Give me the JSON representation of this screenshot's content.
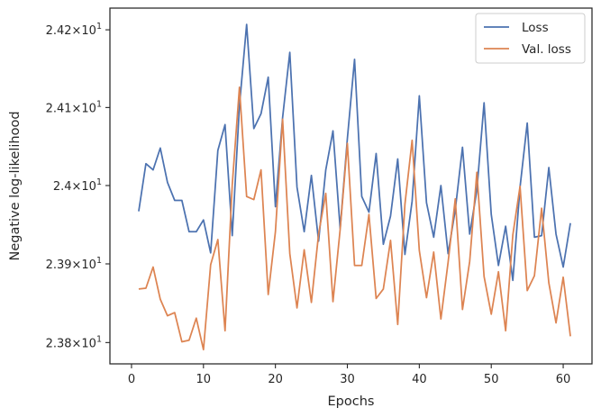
{
  "chart_data": {
    "type": "line",
    "xlabel": "Epochs",
    "ylabel": "Negative log-likelihood",
    "xlim": [
      -3,
      64
    ],
    "ylim": [
      23.773,
      24.228
    ],
    "y_scale": "log",
    "x_ticks": [
      {
        "value": 0,
        "label": "0"
      },
      {
        "value": 10,
        "label": "10"
      },
      {
        "value": 20,
        "label": "20"
      },
      {
        "value": 30,
        "label": "30"
      },
      {
        "value": 40,
        "label": "40"
      },
      {
        "value": 50,
        "label": "50"
      },
      {
        "value": 60,
        "label": "60"
      }
    ],
    "y_ticks": [
      {
        "value": 23.8,
        "mantissa": "2.38",
        "base": "10",
        "exp": "1"
      },
      {
        "value": 23.9,
        "mantissa": "2.39",
        "base": "10",
        "exp": "1"
      },
      {
        "value": 24.0,
        "mantissa": "2.4",
        "base": "10",
        "exp": "1"
      },
      {
        "value": 24.1,
        "mantissa": "2.41",
        "base": "10",
        "exp": "1"
      },
      {
        "value": 24.2,
        "mantissa": "2.42",
        "base": "10",
        "exp": "1"
      }
    ],
    "legend_position": "top-right",
    "x": [
      1,
      2,
      3,
      4,
      5,
      6,
      7,
      8,
      9,
      10,
      11,
      12,
      13,
      14,
      15,
      16,
      17,
      18,
      19,
      20,
      21,
      22,
      23,
      24,
      25,
      26,
      27,
      28,
      29,
      30,
      31,
      32,
      33,
      34,
      35,
      36,
      37,
      38,
      39,
      40,
      41,
      42,
      43,
      44,
      45,
      46,
      47,
      48,
      49,
      50,
      51,
      52,
      53,
      54,
      55,
      56,
      57,
      58,
      59,
      60,
      61
    ],
    "series": [
      {
        "name": "Loss",
        "color": "#4c72b0",
        "values": [
          23.967,
          24.028,
          24.02,
          24.048,
          24.004,
          23.981,
          23.981,
          23.941,
          23.941,
          23.956,
          23.914,
          24.045,
          24.078,
          23.936,
          24.102,
          24.207,
          24.073,
          24.092,
          24.139,
          23.973,
          24.087,
          24.171,
          23.998,
          23.941,
          24.013,
          23.929,
          24.02,
          24.07,
          23.945,
          24.06,
          24.162,
          23.986,
          23.966,
          24.041,
          23.925,
          23.961,
          24.034,
          23.912,
          23.98,
          24.115,
          23.978,
          23.934,
          24.0,
          23.913,
          23.969,
          24.049,
          23.938,
          23.994,
          24.106,
          23.963,
          23.898,
          23.948,
          23.879,
          23.998,
          24.08,
          23.934,
          23.936,
          24.023,
          23.938,
          23.896,
          23.952
        ]
      },
      {
        "name": "Val. loss",
        "color": "#dd8452",
        "values": [
          23.868,
          23.869,
          23.896,
          23.855,
          23.834,
          23.838,
          23.801,
          23.803,
          23.831,
          23.791,
          23.899,
          23.931,
          23.815,
          24.001,
          24.126,
          23.986,
          23.982,
          24.02,
          23.861,
          23.941,
          24.085,
          23.913,
          23.844,
          23.918,
          23.851,
          23.938,
          23.99,
          23.852,
          23.944,
          24.054,
          23.898,
          23.898,
          23.963,
          23.856,
          23.868,
          23.93,
          23.823,
          23.976,
          24.058,
          23.917,
          23.857,
          23.915,
          23.83,
          23.902,
          23.983,
          23.842,
          23.903,
          24.017,
          23.884,
          23.836,
          23.89,
          23.815,
          23.937,
          23.999,
          23.866,
          23.885,
          23.971,
          23.876,
          23.825,
          23.883,
          23.808
        ]
      }
    ]
  }
}
